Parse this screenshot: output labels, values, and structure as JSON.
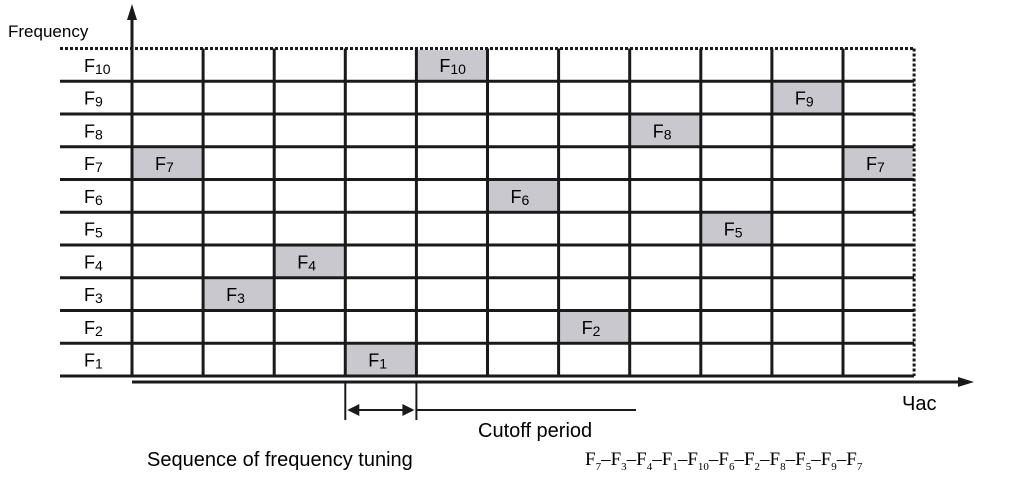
{
  "diagram": {
    "y_axis_title": "Frequency",
    "x_axis_title": "Час",
    "frequency_labels": [
      "F10",
      "F9",
      "F8",
      "F7",
      "F6",
      "F5",
      "F4",
      "F3",
      "F2",
      "F1"
    ],
    "hops": [
      {
        "slot": 1,
        "label": "F7"
      },
      {
        "slot": 2,
        "label": "F3"
      },
      {
        "slot": 3,
        "label": "F4"
      },
      {
        "slot": 4,
        "label": "F1"
      },
      {
        "slot": 5,
        "label": "F10"
      },
      {
        "slot": 6,
        "label": "F6"
      },
      {
        "slot": 7,
        "label": "F2"
      },
      {
        "slot": 8,
        "label": "F8"
      },
      {
        "slot": 9,
        "label": "F5"
      },
      {
        "slot": 10,
        "label": "F9"
      },
      {
        "slot": 11,
        "label": "F7"
      }
    ],
    "cutoff_label": "Cutoff period",
    "sequence_label": "Sequence of frequency tuning",
    "sequence": "F7-F3-F4-F1-F10-F6-F2-F8-F5-F9-F7",
    "colors": {
      "grid": "#1a1a1a",
      "cell_fill": "#c8c8ce",
      "text": "#000000"
    }
  }
}
